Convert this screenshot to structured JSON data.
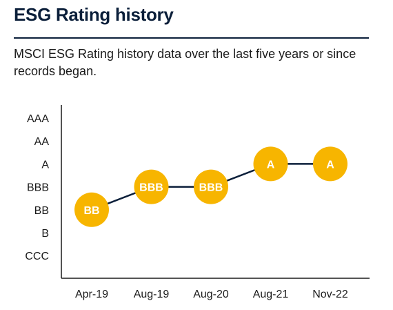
{
  "header": {
    "title": "ESG Rating history",
    "description": "MSCI ESG Rating history data over the last five years or since records began."
  },
  "colors": {
    "marker": "#F7B500",
    "line": "#0B1F3A",
    "axis": "#1a1a1a",
    "marker_text": "#ffffff"
  },
  "chart_data": {
    "type": "line",
    "title": "",
    "xlabel": "",
    "ylabel": "",
    "y_categories": [
      "CCC",
      "B",
      "BB",
      "BBB",
      "A",
      "AA",
      "AAA"
    ],
    "categories": [
      "Apr-19",
      "Aug-19",
      "Aug-20",
      "Aug-21",
      "Nov-22"
    ],
    "series": [
      {
        "values": [
          "BB",
          "BBB",
          "BBB",
          "A",
          "A"
        ]
      }
    ],
    "grid": false,
    "legend": "none"
  }
}
